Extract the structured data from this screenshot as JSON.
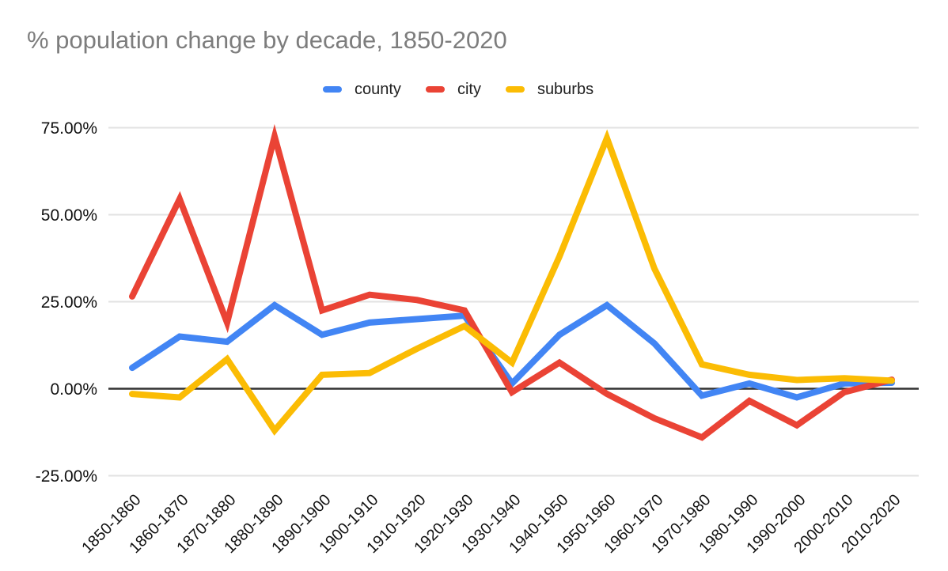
{
  "chart_data": {
    "type": "line",
    "title": "% population change by decade, 1850-2020",
    "legend_position": "top",
    "grid": true,
    "background_color": "#ffffff",
    "title_color": "#7d7d7d",
    "categories": [
      "1850-1860",
      "1860-1870",
      "1870-1880",
      "1880-1890",
      "1890-1900",
      "1900-1910",
      "1910-1920",
      "1920-1930",
      "1930-1940",
      "1940-1950",
      "1950-1960",
      "1960-1970",
      "1970-1980",
      "1980-1990",
      "1990-2000",
      "2000-2010",
      "2010-2020"
    ],
    "series": [
      {
        "name": "county",
        "color": "#4285F4",
        "values": [
          6,
          15,
          13.5,
          24,
          15.5,
          19,
          20,
          21,
          1.5,
          15.5,
          24,
          13,
          -2,
          1.5,
          -2.5,
          1.5,
          1.7
        ]
      },
      {
        "name": "city",
        "color": "#EA4335",
        "values": [
          26.5,
          54.5,
          19,
          72.5,
          22.5,
          27,
          25.5,
          22.5,
          -1,
          7.5,
          -1.5,
          -8.5,
          -14,
          -3.5,
          -10.5,
          -1,
          2.6
        ]
      },
      {
        "name": "suburbs",
        "color": "#FBBC04",
        "values": [
          -1.5,
          -2.5,
          8.5,
          -12,
          4,
          4.5,
          11.5,
          18,
          7.5,
          38,
          72,
          34.5,
          7,
          4,
          2.5,
          3,
          2.3
        ]
      }
    ],
    "y_axis": {
      "range": [
        -25,
        75
      ],
      "tick_interval": 25,
      "ticks": [
        {
          "label": "75.00%",
          "value": 75
        },
        {
          "label": "50.00%",
          "value": 50
        },
        {
          "label": "25.00%",
          "value": 25
        },
        {
          "label": "0.00%",
          "value": 0
        },
        {
          "label": "-25.00%",
          "value": -25
        }
      ],
      "gridline_color": "#e2e2e2",
      "zero_line_color": "#333333"
    },
    "x_axis": {
      "label_rotation_deg": -45
    }
  }
}
